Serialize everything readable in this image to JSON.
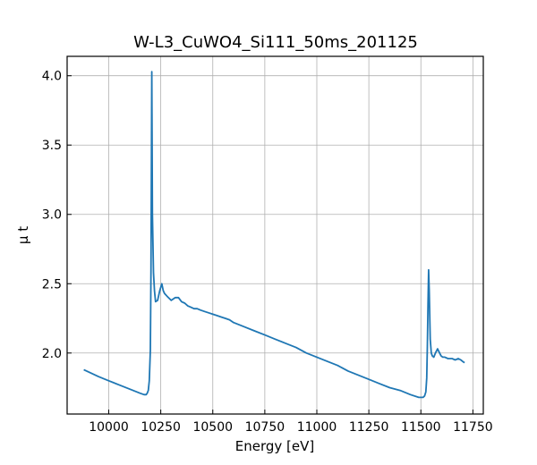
{
  "chart_data": {
    "type": "line",
    "title": "W-L3_CuWO4_Si111_50ms_201125",
    "xlabel": "Energy [eV]",
    "ylabel": "μ t",
    "xlim": [
      9800,
      11800
    ],
    "ylim": [
      1.56,
      4.14
    ],
    "xticks": [
      10000,
      10250,
      10500,
      10750,
      11000,
      11250,
      11500,
      11750
    ],
    "yticks": [
      2.0,
      2.5,
      3.0,
      3.5,
      4.0
    ],
    "xtick_labels": [
      "10000",
      "10250",
      "10500",
      "10750",
      "11000",
      "11250",
      "11500",
      "11750"
    ],
    "ytick_labels": [
      "2.0",
      "2.5",
      "3.0",
      "3.5",
      "4.0"
    ],
    "grid": true,
    "line_color": "#1f77b4",
    "series": [
      {
        "x": [
          9880,
          9950,
          10000,
          10050,
          10100,
          10150,
          10170,
          10180,
          10185,
          10190,
          10195,
          10200,
          10203,
          10205,
          10207,
          10210,
          10215,
          10220,
          10225,
          10235,
          10245,
          10255,
          10262,
          10268,
          10280,
          10300,
          10320,
          10335,
          10350,
          10365,
          10380,
          10395,
          10410,
          10425,
          10440,
          10460,
          10480,
          10500,
          10520,
          10540,
          10560,
          10580,
          10600,
          10650,
          10700,
          10750,
          10800,
          10850,
          10900,
          10950,
          11000,
          11050,
          11100,
          11150,
          11200,
          11250,
          11300,
          11350,
          11400,
          11450,
          11490,
          11510,
          11518,
          11524,
          11528,
          11531,
          11534,
          11537,
          11540,
          11545,
          11550,
          11555,
          11562,
          11570,
          11580,
          11590,
          11597,
          11605,
          11615,
          11630,
          11650,
          11665,
          11680,
          11692,
          11700,
          11710
        ],
        "y": [
          1.88,
          1.83,
          1.8,
          1.77,
          1.74,
          1.71,
          1.7,
          1.7,
          1.71,
          1.73,
          1.8,
          2.02,
          2.6,
          3.4,
          4.03,
          3.0,
          2.58,
          2.45,
          2.37,
          2.38,
          2.45,
          2.5,
          2.45,
          2.43,
          2.41,
          2.38,
          2.4,
          2.4,
          2.37,
          2.36,
          2.34,
          2.33,
          2.32,
          2.32,
          2.31,
          2.3,
          2.29,
          2.28,
          2.27,
          2.26,
          2.25,
          2.24,
          2.22,
          2.19,
          2.16,
          2.13,
          2.1,
          2.07,
          2.04,
          2.0,
          1.97,
          1.94,
          1.91,
          1.87,
          1.84,
          1.81,
          1.78,
          1.75,
          1.73,
          1.7,
          1.68,
          1.68,
          1.69,
          1.72,
          1.82,
          2.05,
          2.35,
          2.6,
          2.45,
          2.1,
          2.0,
          1.98,
          1.97,
          2.0,
          2.03,
          2.0,
          1.98,
          1.97,
          1.97,
          1.96,
          1.96,
          1.95,
          1.96,
          1.95,
          1.94,
          1.93
        ]
      }
    ]
  }
}
